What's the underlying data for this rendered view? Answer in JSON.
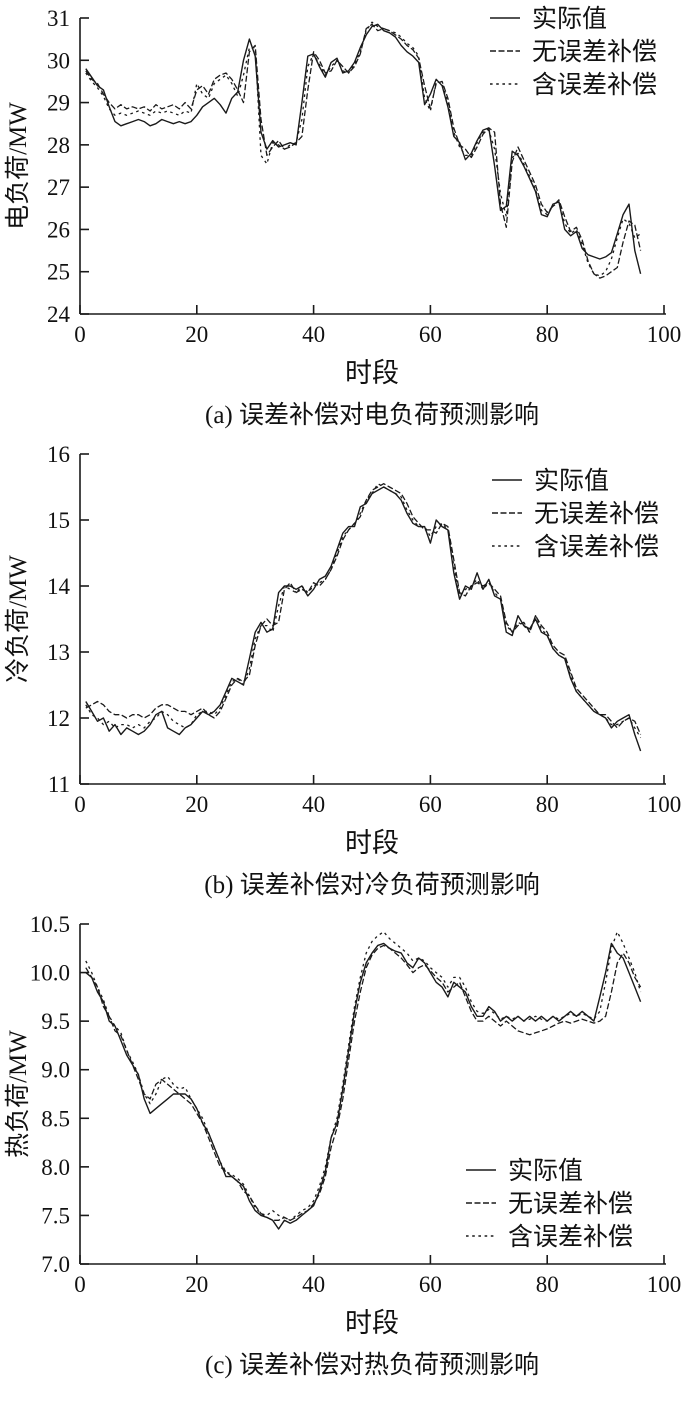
{
  "colors": {
    "stroke": "#1a1a1a",
    "text": "#111111",
    "background": "#ffffff"
  },
  "legend": {
    "items": [
      "实际值",
      "无误差补偿",
      "含误差补偿"
    ]
  },
  "chart_data": [
    {
      "id": "a",
      "type": "line",
      "title": "",
      "xlabel": "时段",
      "ylabel": "电负荷/MW",
      "caption": "(a) 误差补偿对电负荷预测影响",
      "xlim": [
        0,
        100
      ],
      "ylim": [
        24,
        31
      ],
      "xticks": [
        0,
        20,
        40,
        60,
        80,
        100
      ],
      "yticks": [
        24,
        25,
        26,
        27,
        28,
        29,
        30,
        31
      ],
      "ytick_decimals": 0,
      "grid": false,
      "legend_position": "top-right",
      "x_start": 1,
      "series": [
        {
          "name": "实际值",
          "style": "solid",
          "values": [
            29.8,
            29.6,
            29.4,
            29.3,
            28.9,
            28.55,
            28.45,
            28.5,
            28.55,
            28.6,
            28.55,
            28.45,
            28.5,
            28.6,
            28.55,
            28.5,
            28.55,
            28.5,
            28.55,
            28.7,
            28.9,
            29.0,
            29.1,
            28.95,
            28.75,
            29.1,
            29.25,
            30.0,
            30.5,
            30.1,
            28.3,
            27.9,
            28.1,
            27.95,
            28.0,
            28.05,
            28.0,
            29.0,
            30.1,
            30.15,
            29.85,
            29.6,
            29.95,
            30.05,
            29.7,
            29.75,
            29.95,
            30.3,
            30.6,
            30.8,
            30.85,
            30.7,
            30.65,
            30.55,
            30.35,
            30.2,
            30.1,
            29.95,
            28.95,
            29.2,
            29.55,
            29.4,
            28.9,
            28.2,
            28.05,
            27.65,
            27.8,
            28.1,
            28.35,
            28.4,
            27.5,
            26.45,
            26.55,
            27.85,
            27.75,
            27.5,
            27.2,
            26.9,
            26.35,
            26.3,
            26.6,
            26.65,
            26.0,
            25.85,
            25.95,
            25.55,
            25.4,
            25.35,
            25.3,
            25.35,
            25.45,
            25.9,
            26.35,
            26.6,
            25.5,
            24.95
          ]
        },
        {
          "name": "无误差补偿",
          "style": "dense-dash",
          "values": [
            29.75,
            29.55,
            29.45,
            29.2,
            29.0,
            28.85,
            28.95,
            28.85,
            28.9,
            28.85,
            28.9,
            28.8,
            28.95,
            28.85,
            28.9,
            28.95,
            28.85,
            29.0,
            28.85,
            29.3,
            29.4,
            29.2,
            29.55,
            29.65,
            29.7,
            29.55,
            29.3,
            29.0,
            30.2,
            30.35,
            28.6,
            27.75,
            27.95,
            28.1,
            27.9,
            27.95,
            28.05,
            28.2,
            29.3,
            30.2,
            30.0,
            29.7,
            29.75,
            30.0,
            29.85,
            29.7,
            29.85,
            30.15,
            30.75,
            30.85,
            30.7,
            30.75,
            30.7,
            30.6,
            30.5,
            30.35,
            30.25,
            30.05,
            29.4,
            28.85,
            29.45,
            29.5,
            29.1,
            28.4,
            28.0,
            27.9,
            27.7,
            27.95,
            28.25,
            28.4,
            28.3,
            26.6,
            26.05,
            27.6,
            27.95,
            27.65,
            27.35,
            27.05,
            26.6,
            26.4,
            26.55,
            26.7,
            26.3,
            25.95,
            26.05,
            25.75,
            25.25,
            24.95,
            24.85,
            24.9,
            25.0,
            25.1,
            25.7,
            26.2,
            26.1,
            25.5
          ]
        },
        {
          "name": "含误差补偿",
          "style": "dash",
          "values": [
            29.7,
            29.5,
            29.35,
            29.15,
            28.85,
            28.7,
            28.75,
            28.7,
            28.75,
            28.8,
            28.75,
            28.7,
            28.8,
            28.75,
            28.8,
            28.75,
            28.7,
            28.8,
            28.75,
            29.45,
            29.2,
            29.1,
            29.45,
            29.55,
            29.65,
            29.45,
            29.15,
            29.65,
            30.3,
            30.3,
            27.75,
            27.55,
            28.05,
            28.0,
            27.9,
            28.0,
            28.05,
            28.6,
            29.85,
            30.15,
            29.9,
            29.65,
            29.85,
            30.0,
            29.75,
            29.7,
            29.9,
            30.2,
            30.7,
            30.9,
            30.8,
            30.75,
            30.7,
            30.65,
            30.55,
            30.4,
            30.3,
            30.1,
            29.1,
            28.8,
            29.5,
            29.45,
            29.0,
            28.3,
            27.95,
            27.75,
            27.75,
            28.05,
            28.3,
            28.35,
            27.9,
            26.85,
            26.3,
            27.7,
            27.8,
            27.55,
            27.25,
            26.95,
            26.45,
            26.35,
            26.55,
            26.65,
            26.15,
            25.9,
            26.0,
            25.65,
            25.2,
            24.95,
            24.9,
            25.0,
            25.3,
            25.8,
            26.25,
            26.15,
            25.8,
            25.9
          ]
        }
      ]
    },
    {
      "id": "b",
      "type": "line",
      "title": "",
      "xlabel": "时段",
      "ylabel": "冷负荷/MW",
      "caption": "(b) 误差补偿对冷负荷预测影响",
      "xlim": [
        0,
        100
      ],
      "ylim": [
        11,
        16
      ],
      "xticks": [
        0,
        20,
        40,
        60,
        80,
        100
      ],
      "yticks": [
        11,
        12,
        13,
        14,
        15,
        16
      ],
      "ytick_decimals": 0,
      "grid": false,
      "legend_position": "top-right",
      "x_start": 1,
      "series": [
        {
          "name": "实际值",
          "style": "solid",
          "values": [
            12.25,
            12.1,
            11.95,
            12.0,
            11.8,
            11.9,
            11.75,
            11.85,
            11.8,
            11.75,
            11.8,
            11.9,
            12.05,
            12.1,
            11.85,
            11.8,
            11.75,
            11.85,
            11.9,
            12.0,
            12.1,
            12.05,
            12.1,
            12.2,
            12.4,
            12.6,
            12.55,
            12.5,
            12.9,
            13.3,
            13.45,
            13.3,
            13.35,
            13.9,
            14.0,
            14.0,
            13.95,
            14.0,
            13.85,
            13.95,
            14.1,
            14.15,
            14.3,
            14.55,
            14.8,
            14.9,
            14.9,
            15.2,
            15.25,
            15.4,
            15.45,
            15.5,
            15.45,
            15.4,
            15.3,
            15.1,
            14.95,
            14.9,
            14.9,
            14.65,
            15.0,
            14.9,
            14.85,
            14.2,
            13.8,
            14.0,
            13.95,
            14.2,
            13.95,
            14.1,
            13.85,
            13.8,
            13.3,
            13.25,
            13.55,
            13.4,
            13.35,
            13.5,
            13.3,
            13.25,
            13.05,
            12.95,
            12.9,
            12.6,
            12.4,
            12.3,
            12.2,
            12.1,
            12.05,
            12.0,
            11.85,
            11.95,
            12.0,
            12.05,
            11.75,
            11.5
          ]
        },
        {
          "name": "无误差补偿",
          "style": "dense-dash",
          "values": [
            12.15,
            12.2,
            12.25,
            12.2,
            12.1,
            12.05,
            12.05,
            12.0,
            12.05,
            12.05,
            12.0,
            12.05,
            12.15,
            12.2,
            12.2,
            12.15,
            12.1,
            12.1,
            12.05,
            12.1,
            12.15,
            12.05,
            12.0,
            12.1,
            12.3,
            12.5,
            12.6,
            12.55,
            12.65,
            13.1,
            13.4,
            13.5,
            13.4,
            13.45,
            13.95,
            14.05,
            13.9,
            13.95,
            13.9,
            14.05,
            14.0,
            14.1,
            14.25,
            14.45,
            14.7,
            14.85,
            14.95,
            15.05,
            15.3,
            15.45,
            15.5,
            15.55,
            15.5,
            15.45,
            15.4,
            15.25,
            15.05,
            14.95,
            14.85,
            14.85,
            14.8,
            14.95,
            14.9,
            14.4,
            13.9,
            13.85,
            14.0,
            14.05,
            14.0,
            14.05,
            13.95,
            13.85,
            13.45,
            13.3,
            13.4,
            13.45,
            13.3,
            13.55,
            13.4,
            13.3,
            13.1,
            13.0,
            12.95,
            12.7,
            12.45,
            12.35,
            12.25,
            12.15,
            12.05,
            12.05,
            11.95,
            11.85,
            11.95,
            12.0,
            11.95,
            11.75
          ]
        },
        {
          "name": "含误差补偿",
          "style": "dash",
          "values": [
            12.2,
            12.05,
            12.0,
            11.9,
            11.95,
            11.85,
            11.9,
            11.9,
            11.85,
            11.9,
            11.85,
            11.95,
            12.0,
            12.1,
            12.05,
            11.95,
            11.9,
            11.85,
            11.9,
            12.05,
            12.1,
            12.1,
            12.05,
            12.15,
            12.35,
            12.55,
            12.6,
            12.5,
            12.75,
            13.2,
            13.4,
            13.4,
            13.3,
            13.7,
            14.0,
            13.95,
            13.9,
            14.0,
            13.9,
            14.0,
            14.05,
            14.1,
            14.25,
            14.5,
            14.75,
            14.85,
            14.95,
            15.1,
            15.3,
            15.4,
            15.55,
            15.5,
            15.45,
            15.4,
            15.35,
            15.15,
            15.0,
            14.9,
            14.9,
            14.75,
            14.9,
            14.95,
            14.85,
            14.3,
            13.85,
            13.95,
            14.0,
            14.1,
            13.95,
            14.05,
            13.9,
            13.8,
            13.4,
            13.3,
            13.45,
            13.4,
            13.3,
            13.55,
            13.35,
            13.25,
            13.05,
            12.95,
            12.9,
            12.65,
            12.4,
            12.3,
            12.2,
            12.1,
            12.05,
            12.0,
            11.9,
            11.9,
            11.95,
            12.0,
            11.85,
            11.7
          ]
        }
      ]
    },
    {
      "id": "c",
      "type": "line",
      "title": "",
      "xlabel": "时段",
      "ylabel": "热负荷/MW",
      "caption": "(c) 误差补偿对热负荷预测影响",
      "xlim": [
        0,
        100
      ],
      "ylim": [
        7.0,
        10.5
      ],
      "xticks": [
        0,
        20,
        40,
        60,
        80,
        100
      ],
      "yticks": [
        7.0,
        7.5,
        8.0,
        8.5,
        9.0,
        9.5,
        10.0,
        10.5
      ],
      "ytick_decimals": 1,
      "grid": false,
      "legend_position": "bottom-right",
      "x_start": 1,
      "series": [
        {
          "name": "实际值",
          "style": "solid",
          "values": [
            10.0,
            9.95,
            9.8,
            9.7,
            9.5,
            9.45,
            9.3,
            9.15,
            9.05,
            8.95,
            8.7,
            8.55,
            8.6,
            8.65,
            8.7,
            8.75,
            8.75,
            8.75,
            8.7,
            8.6,
            8.45,
            8.35,
            8.2,
            8.05,
            7.9,
            7.9,
            7.85,
            7.8,
            7.65,
            7.55,
            7.5,
            7.48,
            7.45,
            7.36,
            7.45,
            7.42,
            7.45,
            7.5,
            7.55,
            7.6,
            7.75,
            7.95,
            8.3,
            8.45,
            8.8,
            9.2,
            9.6,
            9.9,
            10.1,
            10.2,
            10.28,
            10.3,
            10.25,
            10.22,
            10.2,
            10.1,
            10.05,
            10.15,
            10.1,
            10.0,
            9.9,
            9.85,
            9.75,
            9.9,
            9.85,
            9.8,
            9.65,
            9.55,
            9.55,
            9.65,
            9.6,
            9.5,
            9.55,
            9.5,
            9.55,
            9.5,
            9.55,
            9.5,
            9.55,
            9.5,
            9.55,
            9.5,
            9.55,
            9.6,
            9.55,
            9.6,
            9.55,
            9.5,
            9.75,
            10.0,
            10.3,
            10.2,
            10.15,
            10.0,
            9.85,
            9.7
          ]
        },
        {
          "name": "无误差补偿",
          "style": "dense-dash",
          "values": [
            10.05,
            9.95,
            9.85,
            9.65,
            9.55,
            9.4,
            9.35,
            9.2,
            9.05,
            8.9,
            8.75,
            8.7,
            8.85,
            8.9,
            8.85,
            8.8,
            8.75,
            8.7,
            8.65,
            8.55,
            8.45,
            8.3,
            8.15,
            8.0,
            7.95,
            7.9,
            7.85,
            7.75,
            7.7,
            7.6,
            7.52,
            7.48,
            7.45,
            7.45,
            7.48,
            7.45,
            7.48,
            7.52,
            7.55,
            7.62,
            7.72,
            7.9,
            8.2,
            8.4,
            8.7,
            9.1,
            9.5,
            9.8,
            10.05,
            10.18,
            10.25,
            10.28,
            10.25,
            10.2,
            10.15,
            10.08,
            10.0,
            10.05,
            10.08,
            10.02,
            9.95,
            9.9,
            9.8,
            9.85,
            9.9,
            9.75,
            9.6,
            9.5,
            9.5,
            9.55,
            9.5,
            9.45,
            9.5,
            9.45,
            9.4,
            9.38,
            9.36,
            9.38,
            9.4,
            9.42,
            9.45,
            9.48,
            9.5,
            9.48,
            9.5,
            9.52,
            9.5,
            9.48,
            9.5,
            9.55,
            9.8,
            10.1,
            10.2,
            10.1,
            9.95,
            9.85
          ]
        },
        {
          "name": "含误差补偿",
          "style": "dash",
          "values": [
            10.12,
            10.0,
            9.85,
            9.72,
            9.55,
            9.45,
            9.38,
            9.2,
            9.08,
            8.95,
            8.75,
            8.65,
            8.75,
            8.9,
            8.93,
            8.85,
            8.8,
            8.82,
            8.7,
            8.6,
            8.5,
            8.35,
            8.2,
            8.05,
            7.95,
            7.92,
            7.88,
            7.82,
            7.7,
            7.58,
            7.52,
            7.5,
            7.55,
            7.5,
            7.48,
            7.45,
            7.5,
            7.55,
            7.58,
            7.65,
            7.8,
            8.0,
            8.3,
            8.5,
            8.85,
            9.25,
            9.65,
            9.95,
            10.2,
            10.32,
            10.38,
            10.42,
            10.35,
            10.3,
            10.25,
            10.2,
            10.12,
            10.15,
            10.12,
            10.05,
            10.0,
            9.95,
            9.85,
            9.95,
            9.95,
            9.85,
            9.7,
            9.6,
            9.58,
            9.62,
            9.58,
            9.52,
            9.55,
            9.52,
            9.55,
            9.5,
            9.52,
            9.55,
            9.52,
            9.5,
            9.55,
            9.52,
            9.55,
            9.58,
            9.55,
            9.58,
            9.55,
            9.52,
            9.6,
            9.9,
            10.25,
            10.42,
            10.3,
            10.15,
            10.0,
            9.8
          ]
        }
      ]
    }
  ]
}
